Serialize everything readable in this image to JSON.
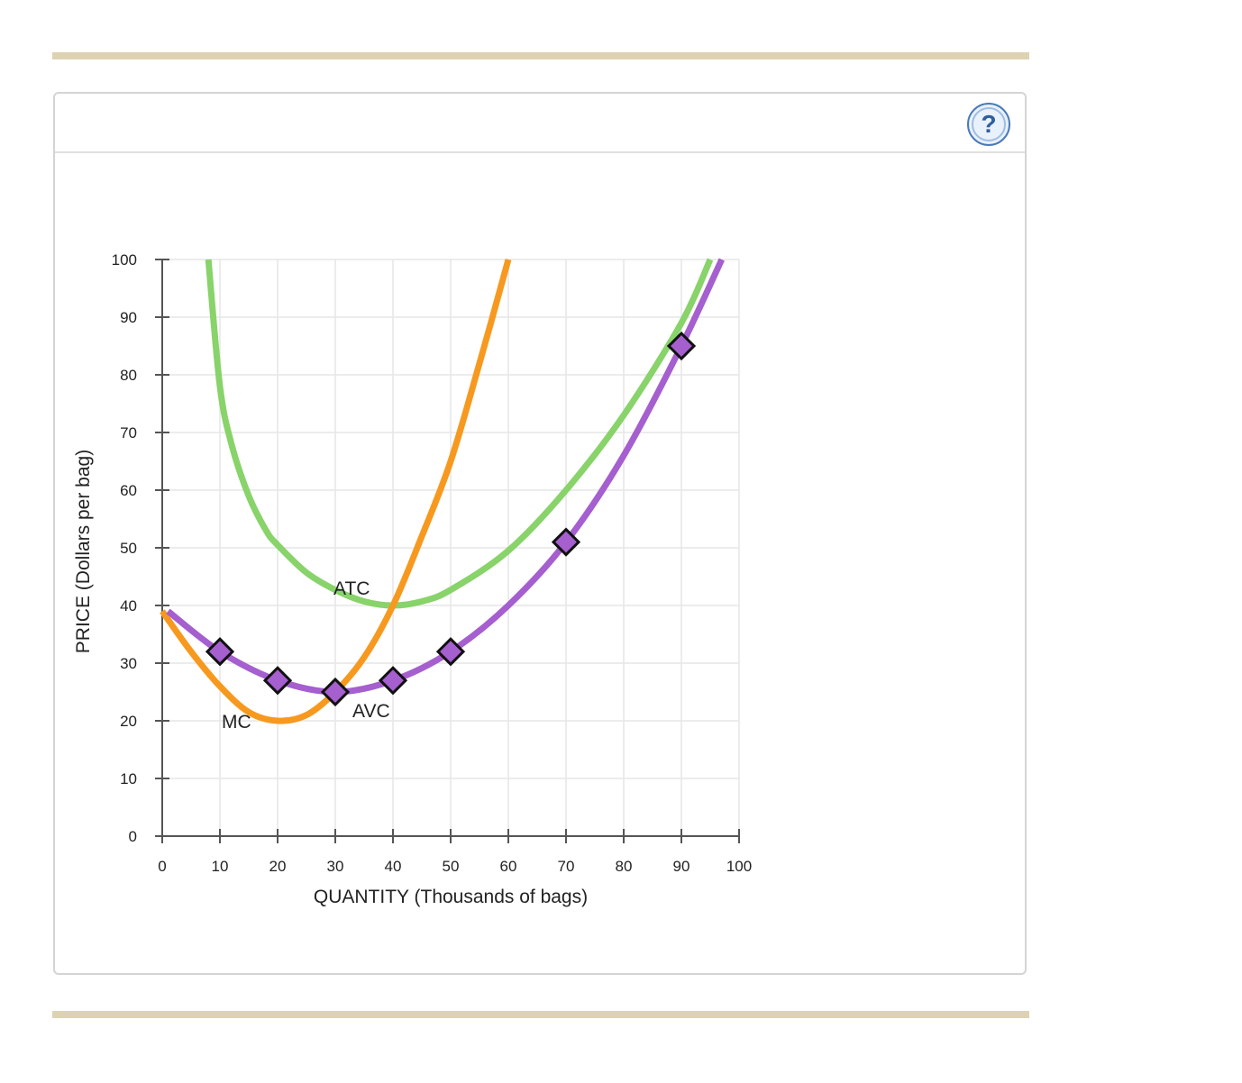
{
  "help_icon_label": "?",
  "colors": {
    "atc": "#88d36a",
    "mc": "#f7991f",
    "avc": "#a55fcf",
    "rule": "#ddd3b3",
    "grid": "#e6e6e6"
  },
  "chart_data": {
    "type": "line",
    "title": "",
    "xlabel": "QUANTITY (Thousands of bags)",
    "ylabel": "PRICE (Dollars per bag)",
    "xlim": [
      0,
      100
    ],
    "ylim": [
      0,
      100
    ],
    "x_ticks": [
      0,
      10,
      20,
      30,
      40,
      50,
      60,
      70,
      80,
      90,
      100
    ],
    "y_ticks": [
      0,
      10,
      20,
      30,
      40,
      50,
      60,
      70,
      80,
      90,
      100
    ],
    "grid": true,
    "series": [
      {
        "name": "ATC",
        "color": "#88d36a",
        "x": [
          8,
          10,
          12,
          15,
          18,
          20,
          25,
          30,
          35,
          40,
          45,
          50,
          60,
          70,
          80,
          90,
          95
        ],
        "y": [
          100,
          78,
          68,
          59,
          53,
          50.5,
          45.7,
          42.7,
          40.7,
          40,
          40.7,
          42.7,
          49.5,
          60,
          73,
          89,
          100
        ]
      },
      {
        "name": "MC",
        "color": "#f7991f",
        "x": [
          0,
          5,
          10,
          15,
          20,
          25,
          30,
          35,
          40,
          45,
          50,
          55,
          60
        ],
        "y": [
          39,
          32,
          26,
          21.5,
          20,
          21,
          25,
          31,
          40,
          52,
          65,
          82,
          100
        ]
      },
      {
        "name": "AVC",
        "color": "#a55fcf",
        "x": [
          1,
          10,
          20,
          30,
          40,
          50,
          60,
          70,
          80,
          90,
          97
        ],
        "y": [
          39,
          32,
          27,
          25,
          27,
          32,
          40,
          51,
          66,
          85,
          100
        ]
      }
    ],
    "points": {
      "series": "AVC",
      "x": [
        10,
        20,
        30,
        40,
        50,
        70,
        90
      ],
      "y": [
        32,
        27,
        25,
        27,
        32,
        51,
        85
      ]
    },
    "curve_labels": [
      {
        "text": "ATC",
        "series": "ATC"
      },
      {
        "text": "MC",
        "series": "MC"
      },
      {
        "text": "AVC",
        "series": "AVC"
      }
    ]
  }
}
